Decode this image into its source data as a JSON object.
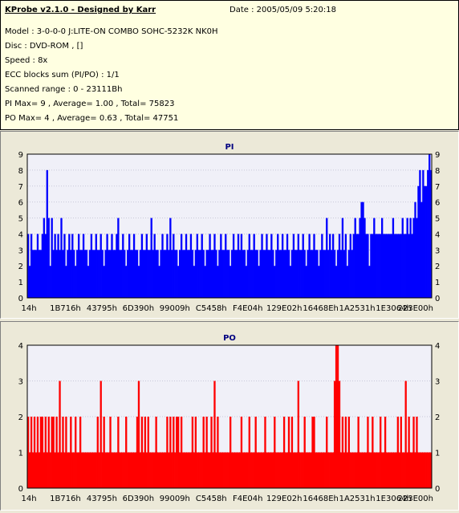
{
  "header": {
    "title": "KProbe v2.1.0 - Designed by Karr",
    "date": "Date : 2005/05/09 5:20:18",
    "model": "Model : 3-0-0-0 J:LITE-ON COMBO SOHC-5232K NK0H",
    "disc": "Disc : DVD-ROM ,  []",
    "speed": "Speed : 8x",
    "ecc": "ECC blocks sum (PI/PO) : 1/1",
    "range": "Scanned range : 0 - 23111Bh",
    "pi_stats": "PI Max= 9 , Average= 1.00 , Total= 75823",
    "po_stats": "PO Max= 4 , Average= 0.63 , Total= 47751"
  },
  "chart_data": [
    {
      "type": "bar",
      "title": "PI",
      "color": "#0000ff",
      "ylim": [
        0,
        9
      ],
      "yticks": [
        0,
        1,
        2,
        3,
        4,
        5,
        6,
        7,
        8,
        9
      ],
      "xtick_labels": [
        "14h",
        "1B716h",
        "43795h",
        "6D390h",
        "99009h",
        "C5458h",
        "F4E04h",
        "129E02h",
        "16468Eh",
        "1A2531h",
        "1E3064h",
        "223E00h"
      ],
      "bins": 256,
      "baseline": 3,
      "peaks": [
        {
          "i": 0,
          "v": 4
        },
        {
          "i": 1,
          "v": 2
        },
        {
          "i": 2,
          "v": 4
        },
        {
          "i": 4,
          "v": 3
        },
        {
          "i": 6,
          "v": 4
        },
        {
          "i": 9,
          "v": 4
        },
        {
          "i": 10,
          "v": 5
        },
        {
          "i": 11,
          "v": 4
        },
        {
          "i": 12,
          "v": 8
        },
        {
          "i": 13,
          "v": 5
        },
        {
          "i": 14,
          "v": 2
        },
        {
          "i": 15,
          "v": 5
        },
        {
          "i": 17,
          "v": 4
        },
        {
          "i": 19,
          "v": 4
        },
        {
          "i": 21,
          "v": 5
        },
        {
          "i": 23,
          "v": 4
        },
        {
          "i": 24,
          "v": 2
        },
        {
          "i": 26,
          "v": 4
        },
        {
          "i": 28,
          "v": 4
        },
        {
          "i": 30,
          "v": 2
        },
        {
          "i": 32,
          "v": 4
        },
        {
          "i": 35,
          "v": 4
        },
        {
          "i": 38,
          "v": 2
        },
        {
          "i": 40,
          "v": 4
        },
        {
          "i": 43,
          "v": 4
        },
        {
          "i": 46,
          "v": 4
        },
        {
          "i": 48,
          "v": 2
        },
        {
          "i": 50,
          "v": 4
        },
        {
          "i": 53,
          "v": 4
        },
        {
          "i": 56,
          "v": 4
        },
        {
          "i": 57,
          "v": 5
        },
        {
          "i": 60,
          "v": 4
        },
        {
          "i": 62,
          "v": 2
        },
        {
          "i": 64,
          "v": 4
        },
        {
          "i": 67,
          "v": 4
        },
        {
          "i": 70,
          "v": 2
        },
        {
          "i": 72,
          "v": 4
        },
        {
          "i": 75,
          "v": 4
        },
        {
          "i": 78,
          "v": 5
        },
        {
          "i": 80,
          "v": 4
        },
        {
          "i": 83,
          "v": 2
        },
        {
          "i": 85,
          "v": 4
        },
        {
          "i": 88,
          "v": 4
        },
        {
          "i": 90,
          "v": 5
        },
        {
          "i": 92,
          "v": 4
        },
        {
          "i": 95,
          "v": 2
        },
        {
          "i": 97,
          "v": 4
        },
        {
          "i": 100,
          "v": 4
        },
        {
          "i": 103,
          "v": 4
        },
        {
          "i": 105,
          "v": 2
        },
        {
          "i": 107,
          "v": 4
        },
        {
          "i": 110,
          "v": 4
        },
        {
          "i": 112,
          "v": 2
        },
        {
          "i": 115,
          "v": 4
        },
        {
          "i": 118,
          "v": 4
        },
        {
          "i": 120,
          "v": 2
        },
        {
          "i": 122,
          "v": 4
        },
        {
          "i": 125,
          "v": 4
        },
        {
          "i": 128,
          "v": 2
        },
        {
          "i": 130,
          "v": 4
        },
        {
          "i": 133,
          "v": 4
        },
        {
          "i": 135,
          "v": 4
        },
        {
          "i": 138,
          "v": 2
        },
        {
          "i": 140,
          "v": 4
        },
        {
          "i": 143,
          "v": 4
        },
        {
          "i": 146,
          "v": 2
        },
        {
          "i": 148,
          "v": 4
        },
        {
          "i": 151,
          "v": 4
        },
        {
          "i": 154,
          "v": 4
        },
        {
          "i": 156,
          "v": 2
        },
        {
          "i": 158,
          "v": 4
        },
        {
          "i": 161,
          "v": 4
        },
        {
          "i": 164,
          "v": 4
        },
        {
          "i": 166,
          "v": 2
        },
        {
          "i": 168,
          "v": 4
        },
        {
          "i": 171,
          "v": 4
        },
        {
          "i": 174,
          "v": 4
        },
        {
          "i": 176,
          "v": 2
        },
        {
          "i": 178,
          "v": 4
        },
        {
          "i": 181,
          "v": 4
        },
        {
          "i": 184,
          "v": 2
        },
        {
          "i": 186,
          "v": 4
        },
        {
          "i": 189,
          "v": 5
        },
        {
          "i": 191,
          "v": 4
        },
        {
          "i": 193,
          "v": 4
        },
        {
          "i": 195,
          "v": 2
        },
        {
          "i": 197,
          "v": 4
        },
        {
          "i": 199,
          "v": 5
        },
        {
          "i": 201,
          "v": 4
        },
        {
          "i": 202,
          "v": 2
        },
        {
          "i": 204,
          "v": 4
        },
        {
          "i": 206,
          "v": 4
        },
        {
          "i": 207,
          "v": 5
        },
        {
          "i": 208,
          "v": 4
        },
        {
          "i": 209,
          "v": 4
        },
        {
          "i": 210,
          "v": 5
        },
        {
          "i": 211,
          "v": 6
        },
        {
          "i": 212,
          "v": 6
        },
        {
          "i": 213,
          "v": 5
        },
        {
          "i": 214,
          "v": 4
        },
        {
          "i": 215,
          "v": 4
        },
        {
          "i": 216,
          "v": 2
        },
        {
          "i": 217,
          "v": 4
        },
        {
          "i": 218,
          "v": 4
        },
        {
          "i": 219,
          "v": 5
        },
        {
          "i": 220,
          "v": 4
        },
        {
          "i": 221,
          "v": 4
        },
        {
          "i": 222,
          "v": 4
        },
        {
          "i": 223,
          "v": 4
        },
        {
          "i": 224,
          "v": 5
        },
        {
          "i": 225,
          "v": 4
        },
        {
          "i": 226,
          "v": 4
        },
        {
          "i": 227,
          "v": 4
        },
        {
          "i": 228,
          "v": 4
        },
        {
          "i": 229,
          "v": 4
        },
        {
          "i": 230,
          "v": 4
        },
        {
          "i": 231,
          "v": 5
        },
        {
          "i": 232,
          "v": 4
        },
        {
          "i": 233,
          "v": 4
        },
        {
          "i": 234,
          "v": 4
        },
        {
          "i": 235,
          "v": 4
        },
        {
          "i": 236,
          "v": 4
        },
        {
          "i": 237,
          "v": 5
        },
        {
          "i": 238,
          "v": 4
        },
        {
          "i": 239,
          "v": 4
        },
        {
          "i": 240,
          "v": 5
        },
        {
          "i": 241,
          "v": 4
        },
        {
          "i": 242,
          "v": 5
        },
        {
          "i": 243,
          "v": 4
        },
        {
          "i": 244,
          "v": 5
        },
        {
          "i": 245,
          "v": 6
        },
        {
          "i": 246,
          "v": 5
        },
        {
          "i": 247,
          "v": 7
        },
        {
          "i": 248,
          "v": 8
        },
        {
          "i": 249,
          "v": 6
        },
        {
          "i": 250,
          "v": 8
        },
        {
          "i": 251,
          "v": 7
        },
        {
          "i": 252,
          "v": 7
        },
        {
          "i": 253,
          "v": 8
        },
        {
          "i": 254,
          "v": 9
        },
        {
          "i": 255,
          "v": 8
        }
      ]
    },
    {
      "type": "bar",
      "title": "PO",
      "color": "#ff0000",
      "ylim": [
        0,
        4
      ],
      "yticks": [
        0,
        1,
        2,
        3,
        4
      ],
      "xtick_labels": [
        "14h",
        "1B716h",
        "43795h",
        "6D390h",
        "99009h",
        "C5458h",
        "F4E04h",
        "129E02h",
        "16468Eh",
        "1A2531h",
        "1E3064h",
        "223E00h"
      ],
      "bins": 256,
      "baseline": 1,
      "peaks": [
        {
          "i": 0,
          "v": 2
        },
        {
          "i": 2,
          "v": 2
        },
        {
          "i": 4,
          "v": 2
        },
        {
          "i": 6,
          "v": 2
        },
        {
          "i": 8,
          "v": 2
        },
        {
          "i": 9,
          "v": 2
        },
        {
          "i": 11,
          "v": 2
        },
        {
          "i": 13,
          "v": 2
        },
        {
          "i": 15,
          "v": 2
        },
        {
          "i": 16,
          "v": 2
        },
        {
          "i": 18,
          "v": 2
        },
        {
          "i": 20,
          "v": 3
        },
        {
          "i": 22,
          "v": 2
        },
        {
          "i": 24,
          "v": 2
        },
        {
          "i": 27,
          "v": 2
        },
        {
          "i": 30,
          "v": 2
        },
        {
          "i": 33,
          "v": 2
        },
        {
          "i": 44,
          "v": 2
        },
        {
          "i": 46,
          "v": 3
        },
        {
          "i": 48,
          "v": 2
        },
        {
          "i": 52,
          "v": 2
        },
        {
          "i": 57,
          "v": 2
        },
        {
          "i": 62,
          "v": 2
        },
        {
          "i": 69,
          "v": 2
        },
        {
          "i": 70,
          "v": 3
        },
        {
          "i": 72,
          "v": 2
        },
        {
          "i": 74,
          "v": 2
        },
        {
          "i": 76,
          "v": 2
        },
        {
          "i": 81,
          "v": 2
        },
        {
          "i": 88,
          "v": 2
        },
        {
          "i": 90,
          "v": 2
        },
        {
          "i": 92,
          "v": 2
        },
        {
          "i": 94,
          "v": 2
        },
        {
          "i": 95,
          "v": 2
        },
        {
          "i": 97,
          "v": 2
        },
        {
          "i": 104,
          "v": 2
        },
        {
          "i": 106,
          "v": 2
        },
        {
          "i": 111,
          "v": 2
        },
        {
          "i": 113,
          "v": 2
        },
        {
          "i": 116,
          "v": 2
        },
        {
          "i": 118,
          "v": 3
        },
        {
          "i": 120,
          "v": 2
        },
        {
          "i": 128,
          "v": 2
        },
        {
          "i": 135,
          "v": 2
        },
        {
          "i": 140,
          "v": 2
        },
        {
          "i": 144,
          "v": 2
        },
        {
          "i": 150,
          "v": 2
        },
        {
          "i": 156,
          "v": 2
        },
        {
          "i": 162,
          "v": 2
        },
        {
          "i": 165,
          "v": 2
        },
        {
          "i": 167,
          "v": 2
        },
        {
          "i": 171,
          "v": 3
        },
        {
          "i": 175,
          "v": 2
        },
        {
          "i": 180,
          "v": 2
        },
        {
          "i": 181,
          "v": 2
        },
        {
          "i": 189,
          "v": 2
        },
        {
          "i": 194,
          "v": 3
        },
        {
          "i": 195,
          "v": 4
        },
        {
          "i": 196,
          "v": 4
        },
        {
          "i": 197,
          "v": 3
        },
        {
          "i": 199,
          "v": 2
        },
        {
          "i": 201,
          "v": 2
        },
        {
          "i": 203,
          "v": 2
        },
        {
          "i": 209,
          "v": 2
        },
        {
          "i": 215,
          "v": 2
        },
        {
          "i": 218,
          "v": 2
        },
        {
          "i": 223,
          "v": 2
        },
        {
          "i": 226,
          "v": 2
        },
        {
          "i": 234,
          "v": 2
        },
        {
          "i": 236,
          "v": 2
        },
        {
          "i": 239,
          "v": 3
        },
        {
          "i": 241,
          "v": 2
        },
        {
          "i": 244,
          "v": 2
        },
        {
          "i": 246,
          "v": 2
        }
      ]
    }
  ]
}
